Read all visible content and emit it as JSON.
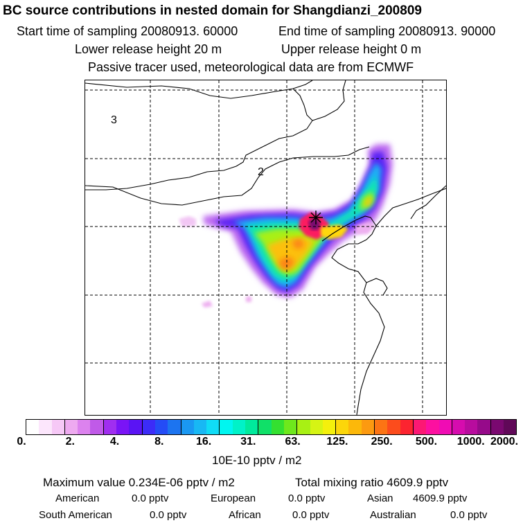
{
  "header": {
    "title": "BC  source contributions in nested domain for Shangdianzi_200809",
    "start_label": "Start time of sampling 20080913. 60000",
    "end_label": "End time of sampling 20080913. 90000",
    "lower_label": "Lower release height   20 m",
    "upper_label": "Upper release height    0 m",
    "tracer_label": "Passive tracer used, meteorological data are from ECMWF"
  },
  "map": {
    "region_labels": [
      "3",
      "2"
    ],
    "receptor_marker": "asterisk",
    "grid": "dashed"
  },
  "legend": {
    "colors": [
      "#ffffff",
      "#fce6fc",
      "#f6c8f6",
      "#eeaaf0",
      "#dc82ee",
      "#c05ae8",
      "#a02ef0",
      "#7a14f6",
      "#5a14f4",
      "#3c2cf8",
      "#244cf6",
      "#1c74f0",
      "#1a98f2",
      "#18b8f4",
      "#10dcf6",
      "#00f6f0",
      "#00f2c8",
      "#00ea9c",
      "#10e068",
      "#34e030",
      "#6ee81c",
      "#a8f014",
      "#d6f414",
      "#f4f00c",
      "#fcd60a",
      "#fcb80a",
      "#fc9a10",
      "#fc7414",
      "#fc4c1c",
      "#fc2430",
      "#fc1874",
      "#fc10a0",
      "#f00cb4",
      "#d60cae",
      "#b80c9e",
      "#960a8a",
      "#7a0870",
      "#600858"
    ],
    "ticks": [
      "0.",
      "2.",
      "4.",
      "8.",
      "16.",
      "31.",
      "63.",
      "125.",
      "250.",
      "500.",
      "1000.",
      "2000."
    ],
    "units": "10E-10 pptv / m2"
  },
  "stats": {
    "max_label": "Maximum value  0.234E-06 pptv / m2",
    "total_label": "Total mixing ratio     4609.9 pptv",
    "american_label": "American",
    "american_value": "0.0 pptv",
    "european_label": "European",
    "european_value": "0.0 pptv",
    "asian_label": "Asian",
    "asian_value": "4609.9 pptv",
    "south_american_label": "South American",
    "south_american_value": "0.0 pptv",
    "african_label": "African",
    "african_value": "0.0 pptv",
    "australian_label": "Australian",
    "australian_value": "0.0 pptv"
  }
}
